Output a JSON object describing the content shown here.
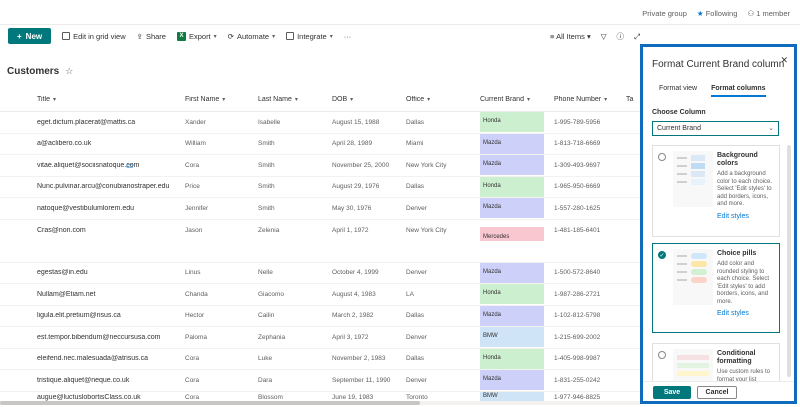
{
  "topbar": {
    "group": "Private group",
    "following": "Following",
    "members": "1 member"
  },
  "cmdbar": {
    "new": "New",
    "grid": "Edit in grid view",
    "share": "Share",
    "export": "Export",
    "automate": "Automate",
    "integrate": "Integrate",
    "more": "···",
    "view": "All Items"
  },
  "list": {
    "title": "Customers"
  },
  "columns": {
    "title": "Title",
    "first": "First Name",
    "last": "Last Name",
    "dob": "DOB",
    "office": "Office",
    "brand": "Current Brand",
    "phone": "Phone Number",
    "ta": "Ta"
  },
  "brand_colors": {
    "Honda": "#ccefd0",
    "Mazda": "#cdd0f8",
    "Mercedes": "#f9c7d0",
    "BMW": "#d0e4f7"
  },
  "rows": [
    {
      "title": "eget.dictum.placerat@mattis.ca",
      "first": "Xander",
      "last": "Isabelle",
      "dob": "August 15, 1988",
      "office": "Dallas",
      "brand": "Honda",
      "phone": "1-995-789-5956"
    },
    {
      "title": "a@aclibero.co.uk",
      "first": "William",
      "last": "Smith",
      "dob": "April 28, 1989",
      "office": "Miami",
      "brand": "Mazda",
      "phone": "1-813-718-6669"
    },
    {
      "title": "vitae.aliquet@sociisnatoque.com",
      "first": "Cora",
      "last": "Smith",
      "dob": "November 25, 2000",
      "office": "New York City",
      "brand": "Mazda",
      "phone": "1-309-493-9697"
    },
    {
      "title": "Nunc.pulvinar.arcu@conubianostraper.edu",
      "first": "Price",
      "last": "Smith",
      "dob": "August 29, 1976",
      "office": "Dallas",
      "brand": "Honda",
      "phone": "1-965-950-6669"
    },
    {
      "title": "natoque@vestibulumlorem.edu",
      "first": "Jennifer",
      "last": "Smith",
      "dob": "May 30, 1976",
      "office": "Denver",
      "brand": "Mazda",
      "phone": "1-557-280-1625"
    },
    {
      "title": "Cras@non.com",
      "first": "Jason",
      "last": "Zelenia",
      "dob": "April 1, 1972",
      "office": "New York City",
      "brand": "Mercedes",
      "phone": "1-481-185-6401"
    },
    {
      "title": "egestas@in.edu",
      "first": "Linus",
      "last": "Nelle",
      "dob": "October 4, 1999",
      "office": "Denver",
      "brand": "Mazda",
      "phone": "1-500-572-8640"
    },
    {
      "title": "Nullam@Etiam.net",
      "first": "Chanda",
      "last": "Giacomo",
      "dob": "August 4, 1983",
      "office": "LA",
      "brand": "Honda",
      "phone": "1-987-286-2721"
    },
    {
      "title": "ligula.elit.pretium@risus.ca",
      "first": "Hector",
      "last": "Cailin",
      "dob": "March 2, 1982",
      "office": "Dallas",
      "brand": "Mazda",
      "phone": "1-102-812-5798"
    },
    {
      "title": "est.tempor.bibendum@neccursusa.com",
      "first": "Paloma",
      "last": "Zephania",
      "dob": "April 3, 1972",
      "office": "Denver",
      "brand": "BMW",
      "phone": "1-215-699-2002"
    },
    {
      "title": "eleifend.nec.malesuada@atrisus.ca",
      "first": "Cora",
      "last": "Luke",
      "dob": "November 2, 1983",
      "office": "Dallas",
      "brand": "Honda",
      "phone": "1-405-998-9987"
    },
    {
      "title": "tristique.aliquet@neque.co.uk",
      "first": "Cora",
      "last": "Dara",
      "dob": "September 11, 1990",
      "office": "Denver",
      "brand": "Mazda",
      "phone": "1-831-255-0242"
    },
    {
      "title": "augue@luctuslobortisClass.co.uk",
      "first": "Cora",
      "last": "Blossom",
      "dob": "June 19, 1983",
      "office": "Toronto",
      "brand": "BMW",
      "phone": "1-977-946-8825"
    }
  ],
  "panel": {
    "title": "Format Current Brand column",
    "tab_view": "Format view",
    "tab_columns": "Format columns",
    "choose_label": "Choose Column",
    "choose_value": "Current Brand",
    "options": [
      {
        "title": "Background colors",
        "desc": "Add a background color to each choice. Select 'Edit styles' to add borders, icons, and more.",
        "link": "Edit styles"
      },
      {
        "title": "Choice pills",
        "desc": "Add color and rounded styling to each choice. Select 'Edit styles' to add borders, icons, and more.",
        "link": "Edit styles"
      },
      {
        "title": "Conditional formatting",
        "desc": "Use custom rules to format your list"
      }
    ],
    "save": "Save",
    "cancel": "Cancel"
  }
}
